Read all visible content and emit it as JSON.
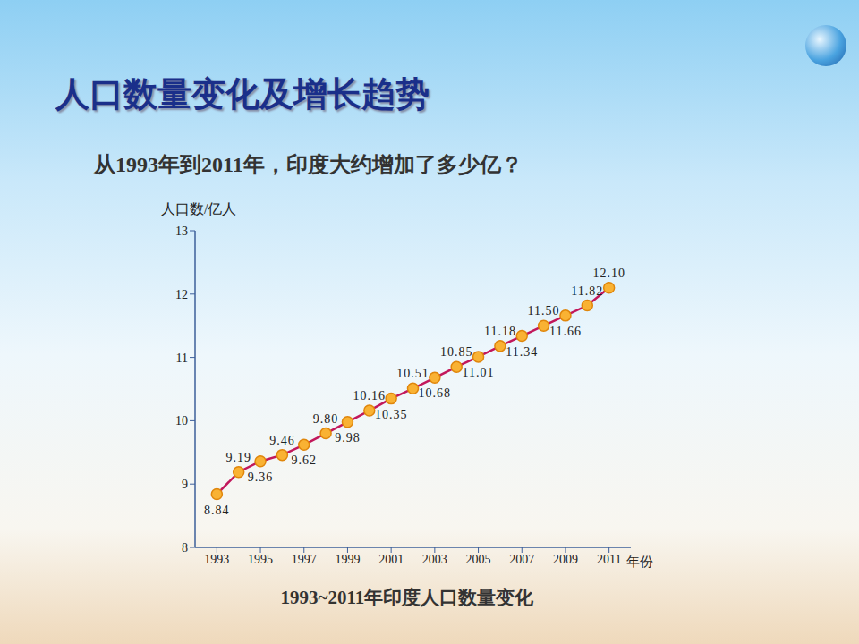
{
  "chart_data": {
    "type": "line",
    "title": "人口数量变化及增长趋势",
    "subtitle": "从1993年到2011年，印度大约增加了多少亿？",
    "caption": "1993~2011年印度人口数量变化",
    "x_label": "年份",
    "y_label": "人口数/亿人",
    "x": [
      1993,
      1994,
      1995,
      1996,
      1997,
      1998,
      1999,
      2000,
      2001,
      2002,
      2003,
      2004,
      2005,
      2006,
      2007,
      2008,
      2009,
      2010,
      2011
    ],
    "values": [
      8.84,
      9.19,
      9.36,
      9.46,
      9.62,
      9.8,
      9.98,
      10.16,
      10.35,
      10.51,
      10.68,
      10.85,
      11.01,
      11.18,
      11.34,
      11.5,
      11.66,
      11.82,
      12.1
    ],
    "value_labels": [
      "8.84",
      "9.19",
      "9.36",
      "9.46",
      "9.62",
      "9.80",
      "9.98",
      "10.16",
      "10.35",
      "10.51",
      "10.68",
      "10.85",
      "11.01",
      "11.18",
      "11.34",
      "11.50",
      "11.66",
      "11.82",
      "12.10"
    ],
    "xlim": [
      1992,
      2012
    ],
    "xticks": [
      1993,
      1995,
      1997,
      1999,
      2001,
      2003,
      2005,
      2007,
      2009,
      2011
    ],
    "ylim": [
      8,
      13
    ],
    "yticks": [
      8,
      9,
      10,
      11,
      12,
      13
    ],
    "color": "#c2185b",
    "marker": "circle",
    "data_labels": true,
    "grid": false
  }
}
